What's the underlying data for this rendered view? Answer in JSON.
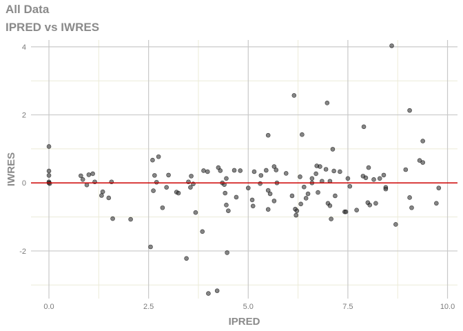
{
  "chart_data": {
    "type": "scatter",
    "title": "All Data",
    "subtitle": "IPRED vs IWRES",
    "xlabel": "IPRED",
    "ylabel": "IWRES",
    "xlim": [
      -0.45,
      10.25
    ],
    "ylim": [
      -3.4,
      4.2
    ],
    "xticks": [
      0.0,
      2.5,
      5.0,
      7.5,
      10.0
    ],
    "xtick_labels": [
      "0.0",
      "2.5",
      "5.0",
      "7.5",
      "10.0"
    ],
    "yticks": [
      -2,
      0,
      2,
      4
    ],
    "ytick_labels": [
      "-2",
      "0",
      "2",
      "4"
    ],
    "grid": true,
    "reference_line": {
      "y": 0,
      "color": "#cc0000"
    },
    "point_color": "#333333",
    "points": [
      {
        "x": 0.0,
        "y": 1.07
      },
      {
        "x": 0.0,
        "y": 0.35
      },
      {
        "x": 0.0,
        "y": 0.22
      },
      {
        "x": 0.0,
        "y": 0.03
      },
      {
        "x": 0.0,
        "y": 0.0
      },
      {
        "x": 0.02,
        "y": -0.02
      },
      {
        "x": 0.8,
        "y": 0.21
      },
      {
        "x": 0.85,
        "y": 0.1
      },
      {
        "x": 0.95,
        "y": -0.06
      },
      {
        "x": 1.0,
        "y": 0.24
      },
      {
        "x": 1.1,
        "y": 0.27
      },
      {
        "x": 1.15,
        "y": 0.03
      },
      {
        "x": 1.35,
        "y": -0.26
      },
      {
        "x": 1.32,
        "y": -0.37
      },
      {
        "x": 1.5,
        "y": -0.44
      },
      {
        "x": 1.57,
        "y": 0.03
      },
      {
        "x": 1.6,
        "y": -1.05
      },
      {
        "x": 2.05,
        "y": -1.07
      },
      {
        "x": 2.55,
        "y": -1.88
      },
      {
        "x": 2.6,
        "y": 0.67
      },
      {
        "x": 2.62,
        "y": -0.23
      },
      {
        "x": 2.65,
        "y": 0.22
      },
      {
        "x": 2.7,
        "y": 0.02
      },
      {
        "x": 2.75,
        "y": 0.77
      },
      {
        "x": 2.85,
        "y": -0.73
      },
      {
        "x": 2.95,
        "y": -0.13
      },
      {
        "x": 3.0,
        "y": 0.23
      },
      {
        "x": 3.2,
        "y": -0.27
      },
      {
        "x": 3.25,
        "y": -0.3
      },
      {
        "x": 3.45,
        "y": -2.22
      },
      {
        "x": 3.5,
        "y": 0.03
      },
      {
        "x": 3.55,
        "y": -0.13
      },
      {
        "x": 3.57,
        "y": 0.2
      },
      {
        "x": 3.62,
        "y": -0.03
      },
      {
        "x": 3.68,
        "y": -0.87
      },
      {
        "x": 3.85,
        "y": -1.43
      },
      {
        "x": 3.88,
        "y": 0.36
      },
      {
        "x": 3.98,
        "y": 0.33
      },
      {
        "x": 4.0,
        "y": -3.25
      },
      {
        "x": 4.22,
        "y": -3.17
      },
      {
        "x": 4.25,
        "y": 0.45
      },
      {
        "x": 4.3,
        "y": 0.36
      },
      {
        "x": 4.35,
        "y": 0.0
      },
      {
        "x": 4.4,
        "y": -0.05
      },
      {
        "x": 4.42,
        "y": -0.3
      },
      {
        "x": 4.45,
        "y": 0.13
      },
      {
        "x": 4.45,
        "y": -0.65
      },
      {
        "x": 4.47,
        "y": -2.05
      },
      {
        "x": 4.5,
        "y": -0.82
      },
      {
        "x": 4.65,
        "y": 0.37
      },
      {
        "x": 4.7,
        "y": -0.42
      },
      {
        "x": 4.8,
        "y": 0.36
      },
      {
        "x": 5.0,
        "y": -0.15
      },
      {
        "x": 5.1,
        "y": -0.5
      },
      {
        "x": 5.12,
        "y": -0.68
      },
      {
        "x": 5.15,
        "y": 0.33
      },
      {
        "x": 5.3,
        "y": -0.02
      },
      {
        "x": 5.32,
        "y": 0.22
      },
      {
        "x": 5.45,
        "y": 0.37
      },
      {
        "x": 5.5,
        "y": 1.4
      },
      {
        "x": 5.5,
        "y": -0.22
      },
      {
        "x": 5.5,
        "y": -0.78
      },
      {
        "x": 5.55,
        "y": -0.32
      },
      {
        "x": 5.65,
        "y": 0.48
      },
      {
        "x": 5.65,
        "y": -0.53
      },
      {
        "x": 5.7,
        "y": 0.38
      },
      {
        "x": 5.72,
        "y": 0.0
      },
      {
        "x": 5.95,
        "y": 0.28
      },
      {
        "x": 6.1,
        "y": -0.38
      },
      {
        "x": 6.15,
        "y": 2.57
      },
      {
        "x": 6.18,
        "y": -0.77
      },
      {
        "x": 6.2,
        "y": -0.95
      },
      {
        "x": 6.22,
        "y": -0.82
      },
      {
        "x": 6.3,
        "y": 0.18
      },
      {
        "x": 6.32,
        "y": -0.62
      },
      {
        "x": 6.35,
        "y": 1.42
      },
      {
        "x": 6.4,
        "y": -0.12
      },
      {
        "x": 6.45,
        "y": -0.45
      },
      {
        "x": 6.5,
        "y": -0.32
      },
      {
        "x": 6.6,
        "y": 0.13
      },
      {
        "x": 6.6,
        "y": 0.0
      },
      {
        "x": 6.7,
        "y": 0.27
      },
      {
        "x": 6.72,
        "y": 0.5
      },
      {
        "x": 6.75,
        "y": -0.28
      },
      {
        "x": 6.8,
        "y": 0.48
      },
      {
        "x": 6.85,
        "y": 0.05
      },
      {
        "x": 6.95,
        "y": 0.4
      },
      {
        "x": 6.98,
        "y": 2.35
      },
      {
        "x": 7.0,
        "y": -0.6
      },
      {
        "x": 7.05,
        "y": -0.67
      },
      {
        "x": 7.05,
        "y": 0.05
      },
      {
        "x": 7.08,
        "y": -1.06
      },
      {
        "x": 7.12,
        "y": 0.99
      },
      {
        "x": 7.15,
        "y": 0.35
      },
      {
        "x": 7.18,
        "y": -0.38
      },
      {
        "x": 7.3,
        "y": 0.33
      },
      {
        "x": 7.42,
        "y": -0.85
      },
      {
        "x": 7.45,
        "y": -0.85
      },
      {
        "x": 7.5,
        "y": 0.13
      },
      {
        "x": 7.55,
        "y": -0.1
      },
      {
        "x": 7.72,
        "y": -0.8
      },
      {
        "x": 7.88,
        "y": 0.2
      },
      {
        "x": 7.9,
        "y": 1.65
      },
      {
        "x": 7.95,
        "y": 0.15
      },
      {
        "x": 8.0,
        "y": -0.58
      },
      {
        "x": 8.02,
        "y": 0.45
      },
      {
        "x": 8.05,
        "y": -0.65
      },
      {
        "x": 8.15,
        "y": 0.1
      },
      {
        "x": 8.2,
        "y": -0.6
      },
      {
        "x": 8.3,
        "y": 0.13
      },
      {
        "x": 8.4,
        "y": 0.23
      },
      {
        "x": 8.45,
        "y": -0.13
      },
      {
        "x": 8.45,
        "y": -0.18
      },
      {
        "x": 8.6,
        "y": 4.03
      },
      {
        "x": 8.7,
        "y": -1.22
      },
      {
        "x": 8.95,
        "y": 0.39
      },
      {
        "x": 9.05,
        "y": 2.13
      },
      {
        "x": 9.05,
        "y": -0.43
      },
      {
        "x": 9.1,
        "y": -0.73
      },
      {
        "x": 9.3,
        "y": 0.66
      },
      {
        "x": 9.38,
        "y": 1.23
      },
      {
        "x": 9.38,
        "y": 0.6
      },
      {
        "x": 9.72,
        "y": -0.6
      },
      {
        "x": 9.78,
        "y": -0.15
      }
    ]
  }
}
